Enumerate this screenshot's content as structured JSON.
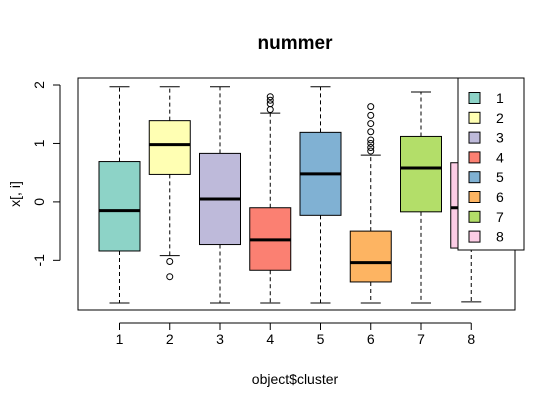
{
  "chart_data": {
    "type": "boxplot",
    "title": "nummer",
    "xlabel": "object$cluster",
    "ylabel": "x[, i]",
    "categories": [
      "1",
      "2",
      "3",
      "4",
      "5",
      "6",
      "7",
      "8"
    ],
    "ylim": [
      -1.85,
      2.12
    ],
    "yticks": [
      -1,
      0,
      1,
      2
    ],
    "yticklabels": [
      "-1",
      "0",
      "1",
      "2"
    ],
    "grid": false,
    "legend_position": "top-right",
    "boxes": [
      {
        "category": "1",
        "min": -1.73,
        "q1": -0.84,
        "median": -0.15,
        "q3": 0.69,
        "max": 1.97,
        "outliers": [],
        "color": "#8DD3C7"
      },
      {
        "category": "2",
        "min": -0.92,
        "q1": 0.47,
        "median": 0.98,
        "q3": 1.39,
        "max": 1.97,
        "outliers": [
          -1.02,
          -1.28
        ],
        "color": "#FFFFB3"
      },
      {
        "category": "3",
        "min": -1.73,
        "q1": -0.73,
        "median": 0.05,
        "q3": 0.83,
        "max": 1.97,
        "outliers": [],
        "color": "#BEBADA"
      },
      {
        "category": "4",
        "min": -1.73,
        "q1": -1.17,
        "median": -0.65,
        "q3": -0.1,
        "max": 1.52,
        "outliers": [
          1.58,
          1.68,
          1.74,
          1.8
        ],
        "color": "#FB8072"
      },
      {
        "category": "5",
        "min": -1.73,
        "q1": -0.23,
        "median": 0.48,
        "q3": 1.19,
        "max": 1.97,
        "outliers": [],
        "color": "#80B1D3"
      },
      {
        "category": "6",
        "min": -1.73,
        "q1": -1.37,
        "median": -1.04,
        "q3": -0.5,
        "max": 0.8,
        "outliers": [
          0.87,
          0.93,
          1.0,
          1.06,
          1.2,
          1.34,
          1.48,
          1.63
        ],
        "color": "#FDB462"
      },
      {
        "category": "7",
        "min": -1.73,
        "q1": -0.17,
        "median": 0.58,
        "q3": 1.12,
        "max": 1.88,
        "outliers": [],
        "color": "#B3DE69"
      },
      {
        "category": "8",
        "min": -1.71,
        "q1": -0.79,
        "median": -0.1,
        "q3": 0.67,
        "max": 1.97,
        "outliers": [],
        "color": "#FCCDE5"
      }
    ],
    "legend": [
      {
        "label": "1",
        "color": "#8DD3C7"
      },
      {
        "label": "2",
        "color": "#FFFFB3"
      },
      {
        "label": "3",
        "color": "#BEBADA"
      },
      {
        "label": "4",
        "color": "#FB8072"
      },
      {
        "label": "5",
        "color": "#80B1D3"
      },
      {
        "label": "6",
        "color": "#FDB462"
      },
      {
        "label": "7",
        "color": "#B3DE69"
      },
      {
        "label": "8",
        "color": "#FCCDE5"
      }
    ]
  }
}
